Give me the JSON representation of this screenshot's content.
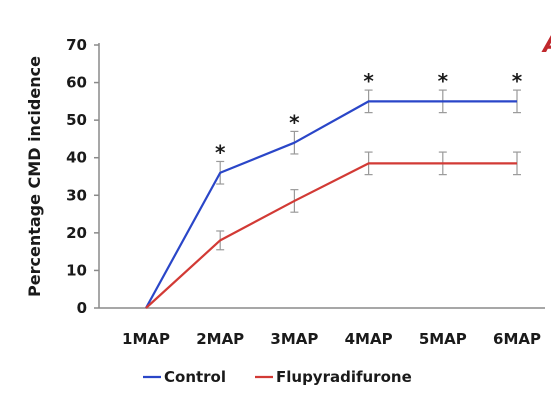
{
  "chart_data": {
    "type": "line",
    "title": "",
    "xlabel": "",
    "ylabel": "Percentage CMD incidence",
    "ylim": [
      0,
      70
    ],
    "yticks": [
      "0",
      "10",
      "20",
      "30",
      "40",
      "50",
      "60",
      "70"
    ],
    "categories": [
      "1MAP",
      "2MAP",
      "3MAP",
      "4MAP",
      "5MAP",
      "6MAP"
    ],
    "series": [
      {
        "name": "Control",
        "color": "#2a46c8",
        "values": [
          0,
          36,
          44,
          55,
          55,
          55
        ],
        "error": [
          0,
          3,
          3,
          3,
          3,
          3
        ]
      },
      {
        "name": "Flupyradifurone",
        "color": "#d23a35",
        "values": [
          0,
          18,
          28.5,
          38.5,
          38.5,
          38.5
        ],
        "error": [
          0,
          2.5,
          3,
          3,
          3,
          3
        ]
      }
    ],
    "significance": [
      "",
      "*",
      "*",
      "*",
      "*",
      "*"
    ],
    "legend_position": "bottom",
    "grid": false,
    "panel_letter": "A",
    "panel_letter_color": "#c0282d"
  }
}
